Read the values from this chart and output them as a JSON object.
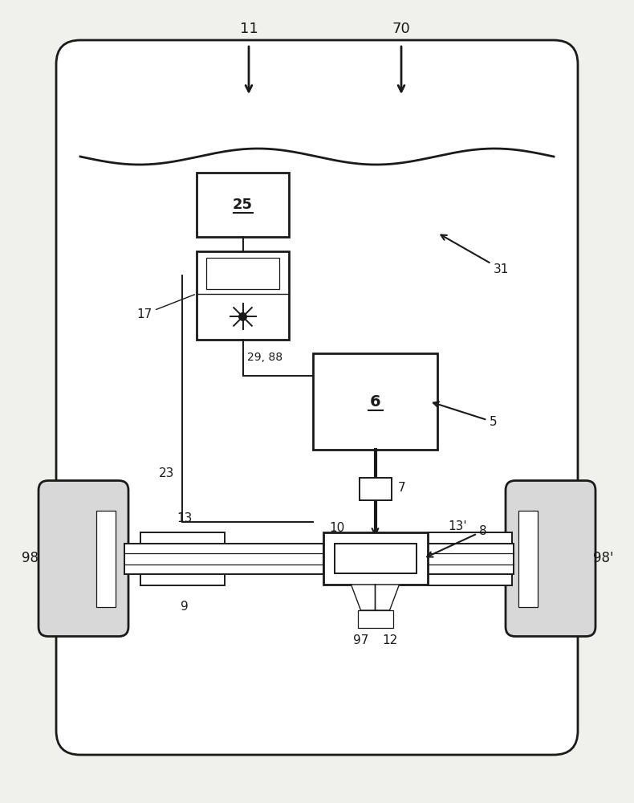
{
  "bg_color": "#f0f0ec",
  "line_color": "#1a1a1a",
  "fig_width": 7.9,
  "fig_height": 10.0
}
